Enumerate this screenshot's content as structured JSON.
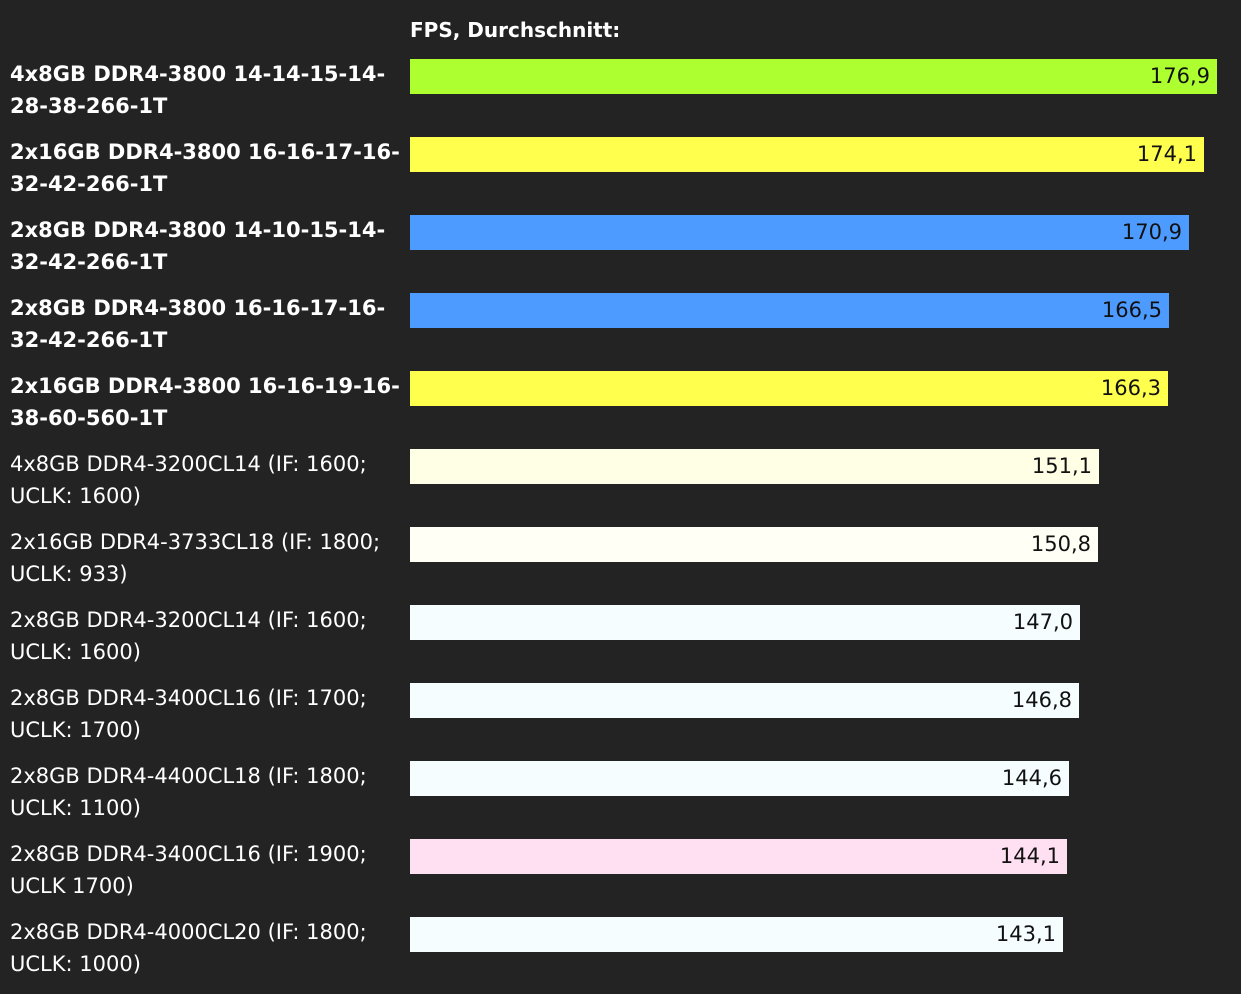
{
  "chart_data": {
    "type": "bar",
    "orientation": "horizontal",
    "title": "FPS, Durchschnitt:",
    "xlim": [
      0,
      182
    ],
    "categories": [
      "4x8GB DDR4-3800 14-14-15-14-28-38-266-1T",
      "2x16GB DDR4-3800 16-16-17-16-32-42-266-1T",
      "2x8GB DDR4-3800 14-10-15-14-32-42-266-1T",
      "2x8GB DDR4-3800 16-16-17-16-32-42-266-1T",
      "2x16GB DDR4-3800 16-16-19-16-38-60-560-1T",
      "4x8GB DDR4-3200CL14 (IF: 1600; UCLK: 1600)",
      "2x16GB DDR4-3733CL18 (IF: 1800; UCLK: 933)",
      "2x8GB DDR4-3200CL14 (IF: 1600; UCLK: 1600)",
      "2x8GB DDR4-3400CL16 (IF: 1700; UCLK: 1700)",
      "2x8GB DDR4-4400CL18 (IF: 1800; UCLK: 1100)",
      "2x8GB DDR4-3400CL16 (IF: 1900; UCLK 1700)",
      "2x8GB DDR4-4000CL20 (IF: 1800; UCLK: 1000)"
    ],
    "values": [
      176.9,
      174.1,
      170.9,
      166.5,
      166.3,
      151.1,
      150.8,
      147.0,
      146.8,
      144.6,
      144.1,
      143.1
    ],
    "value_labels": [
      "176,9",
      "174,1",
      "170,9",
      "166,5",
      "166,3",
      "151,1",
      "150,8",
      "147,0",
      "146,8",
      "144,6",
      "144,1",
      "143,1"
    ],
    "colors": [
      "#adff2f",
      "#ffff4d",
      "#4d9bff",
      "#4d9bff",
      "#ffff4d",
      "#ffffe6",
      "#fffff5",
      "#f5fdff",
      "#f5fdff",
      "#f5fdff",
      "#ffe0f2",
      "#f5fdff"
    ],
    "bold": [
      true,
      true,
      true,
      true,
      true,
      false,
      false,
      false,
      false,
      false,
      false,
      false
    ]
  }
}
